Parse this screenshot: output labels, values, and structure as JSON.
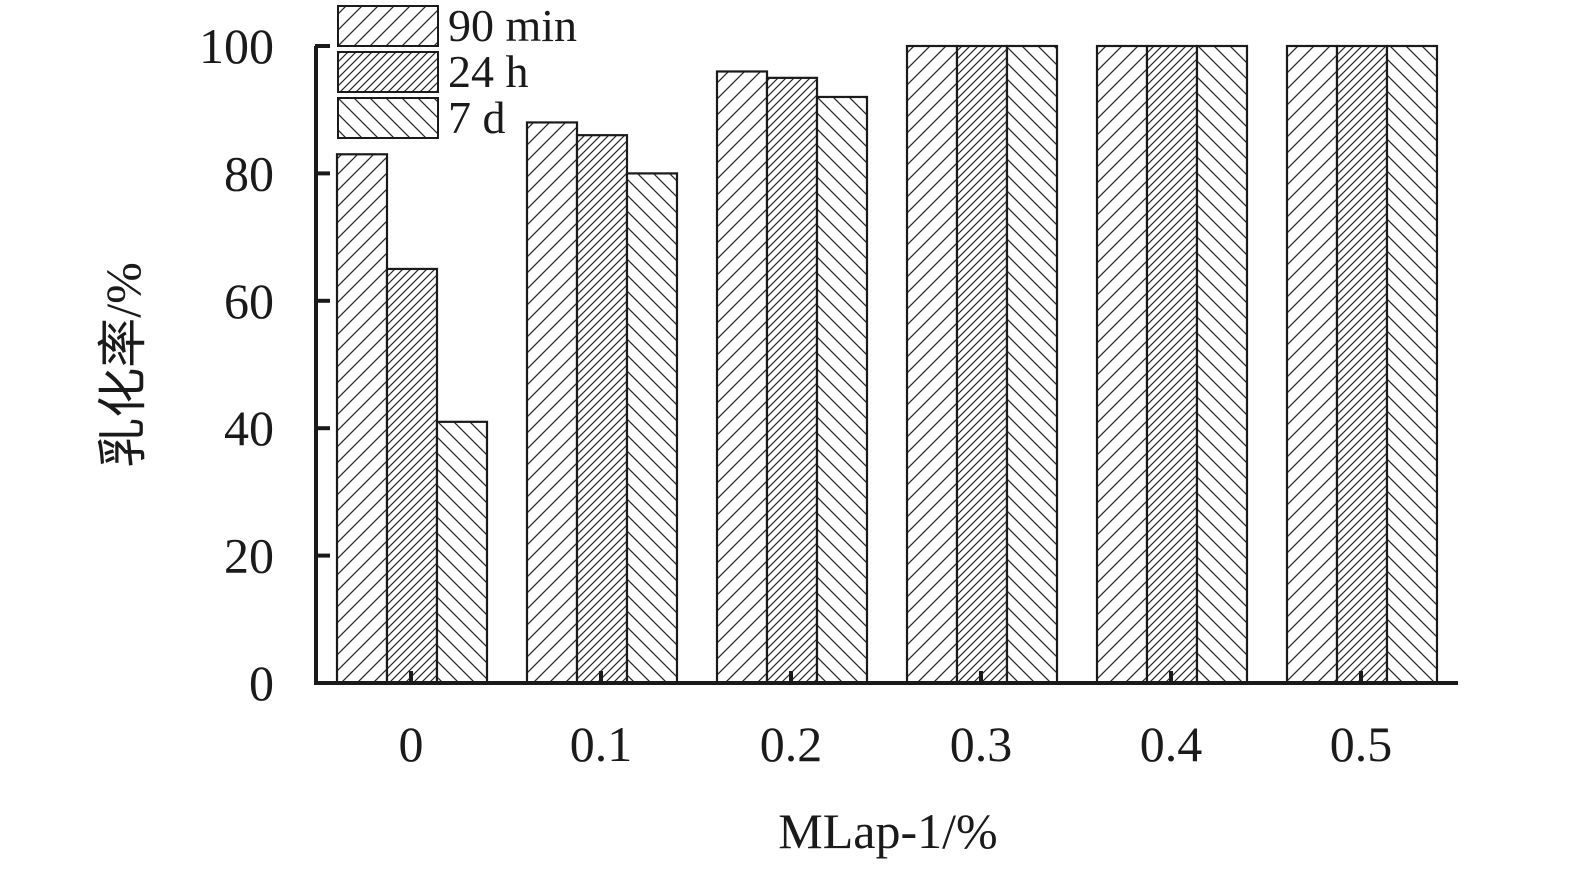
{
  "chart_data": {
    "type": "bar",
    "xlabel": "MLap-1/%",
    "ylabel": "乳化率/%",
    "ylim": [
      0,
      100
    ],
    "yticks": [
      "0",
      "20",
      "40",
      "60",
      "80",
      "100"
    ],
    "categories": [
      "0",
      "0.1",
      "0.2",
      "0.3",
      "0.4",
      "0.5"
    ],
    "series": [
      {
        "name": "90 min",
        "values": [
          83,
          88,
          96,
          100,
          100,
          100
        ],
        "pattern": "diagonal-wide"
      },
      {
        "name": "24 h",
        "values": [
          65,
          86,
          95,
          100,
          100,
          100
        ],
        "pattern": "diagonal-dense"
      },
      {
        "name": "7 d",
        "values": [
          41,
          80,
          92,
          100,
          100,
          100
        ],
        "pattern": "back-diagonal"
      }
    ],
    "legend_position": "top-left",
    "grid": false,
    "colors": {
      "stroke": "#1a1a1a",
      "fill": "#ffffff"
    }
  }
}
